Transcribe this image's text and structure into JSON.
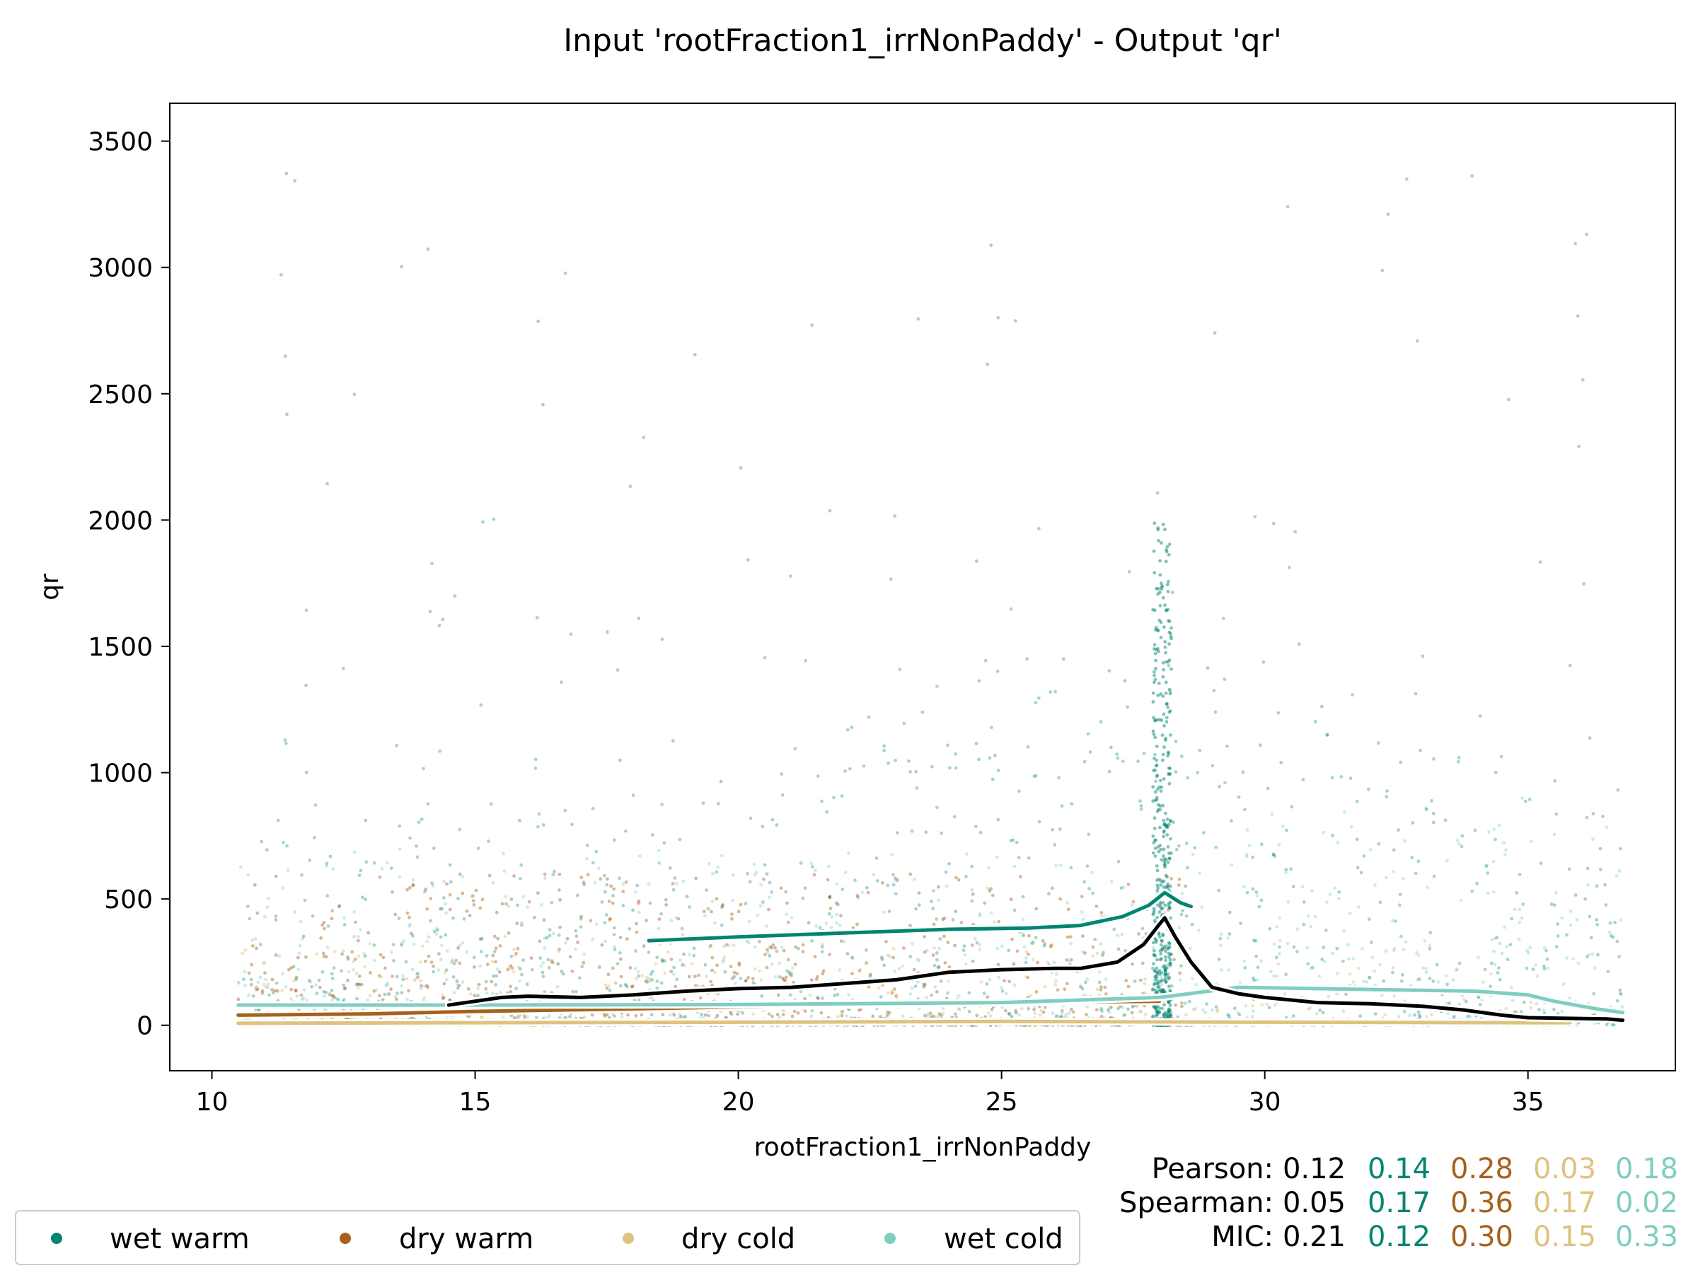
{
  "chart_data": {
    "type": "scatter",
    "title": "Input 'rootFraction1_irrNonPaddy' - Output 'qr'",
    "xlabel": "rootFraction1_irrNonPaddy",
    "ylabel": "qr",
    "xlim": [
      9.2,
      37.8
    ],
    "ylim": [
      -180,
      3650
    ],
    "xticks": [
      10,
      15,
      20,
      25,
      30,
      35
    ],
    "yticks": [
      0,
      500,
      1000,
      1500,
      2000,
      2500,
      3000,
      3500
    ],
    "grid": false,
    "legend_position": "bottom-left",
    "series": [
      {
        "name": "wet warm",
        "color": "#018571",
        "trend": [
          [
            18.3,
            335
          ],
          [
            20,
            350
          ],
          [
            22,
            365
          ],
          [
            24,
            380
          ],
          [
            25.5,
            385
          ],
          [
            26.5,
            395
          ],
          [
            27.3,
            430
          ],
          [
            27.8,
            475
          ],
          [
            28.1,
            525
          ],
          [
            28.4,
            485
          ],
          [
            28.6,
            470
          ]
        ]
      },
      {
        "name": "dry warm",
        "color": "#a6611a",
        "trend": [
          [
            10.5,
            40
          ],
          [
            13,
            45
          ],
          [
            15,
            55
          ],
          [
            18,
            65
          ],
          [
            22,
            80
          ],
          [
            25,
            90
          ],
          [
            28,
            95
          ]
        ]
      },
      {
        "name": "dry cold",
        "color": "#dfc27d",
        "trend": [
          [
            10.5,
            8
          ],
          [
            15,
            10
          ],
          [
            20,
            12
          ],
          [
            25,
            15
          ],
          [
            30,
            12
          ],
          [
            35,
            10
          ],
          [
            35.8,
            10
          ]
        ]
      },
      {
        "name": "wet cold",
        "color": "#80cdc1",
        "trend": [
          [
            10.5,
            80
          ],
          [
            15,
            80
          ],
          [
            20,
            82
          ],
          [
            25,
            90
          ],
          [
            28,
            110
          ],
          [
            29.5,
            150
          ],
          [
            31,
            145
          ],
          [
            32.5,
            140
          ],
          [
            34,
            135
          ],
          [
            35,
            120
          ],
          [
            35.5,
            95
          ],
          [
            36.3,
            65
          ],
          [
            36.8,
            50
          ]
        ]
      }
    ],
    "overall": {
      "name": "all",
      "color": "#000000",
      "trend": [
        [
          14.5,
          80
        ],
        [
          15.5,
          110
        ],
        [
          16,
          115
        ],
        [
          17,
          110
        ],
        [
          18,
          120
        ],
        [
          19,
          135
        ],
        [
          20,
          145
        ],
        [
          21,
          150
        ],
        [
          22,
          165
        ],
        [
          23,
          180
        ],
        [
          24,
          210
        ],
        [
          25,
          220
        ],
        [
          26,
          225
        ],
        [
          26.5,
          225
        ],
        [
          27.2,
          250
        ],
        [
          27.7,
          320
        ],
        [
          28,
          400
        ],
        [
          28.1,
          425
        ],
        [
          28.3,
          350
        ],
        [
          28.6,
          250
        ],
        [
          29,
          150
        ],
        [
          29.5,
          125
        ],
        [
          30,
          110
        ],
        [
          31,
          90
        ],
        [
          32,
          85
        ],
        [
          33,
          75
        ],
        [
          33.8,
          60
        ],
        [
          34.5,
          40
        ],
        [
          35,
          30
        ],
        [
          36.5,
          25
        ],
        [
          36.8,
          20
        ]
      ]
    },
    "stats": {
      "rows": [
        {
          "label": "Pearson:",
          "values": [
            "0.12",
            "0.14",
            "0.28",
            "0.03",
            "0.18"
          ]
        },
        {
          "label": "Spearman:",
          "values": [
            "0.05",
            "0.17",
            "0.36",
            "0.17",
            "0.02"
          ]
        },
        {
          "label": "MIC:",
          "values": [
            "0.21",
            "0.12",
            "0.30",
            "0.15",
            "0.33"
          ]
        }
      ],
      "colors": [
        "#000000",
        "#018571",
        "#a6611a",
        "#dfc27d",
        "#80cdc1"
      ]
    }
  }
}
